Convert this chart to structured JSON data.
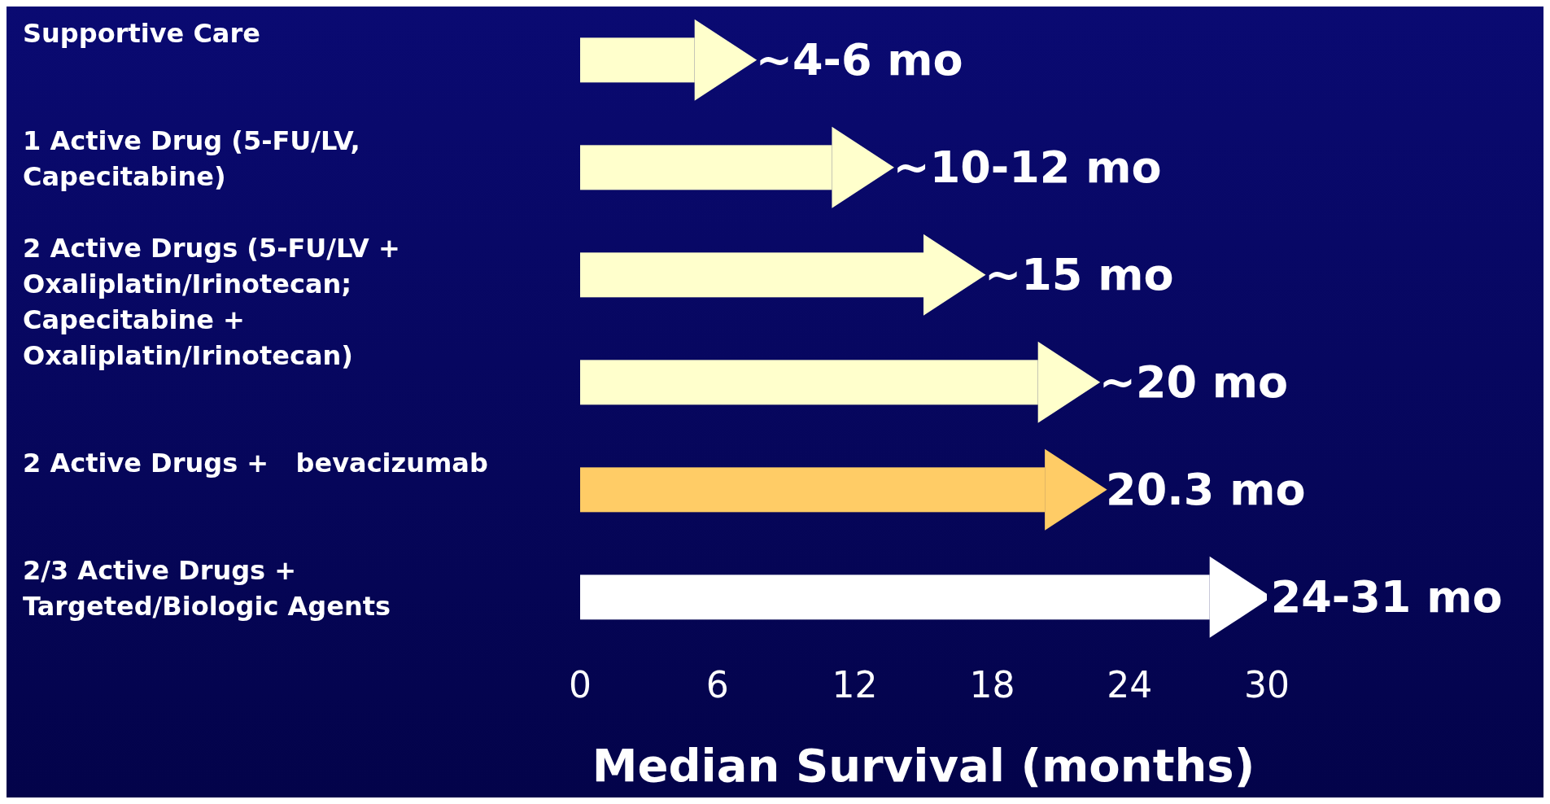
{
  "chart_data": {
    "type": "bar",
    "orientation": "horizontal",
    "categories": [
      "Supportive Care",
      "1 Active Drug (5-FU/LV, Capecitabine)",
      "2 Active Drugs (5-FU/LV + Oxaliplatin/Irinotecan; Capecitabine + Oxaliplatin/Irinotecan)",
      null,
      "2 Active Drugs +   bevacizumab",
      "2/3 Active Drugs + Targeted/Biologic Agents"
    ],
    "values": [
      5,
      11,
      15,
      20,
      20.3,
      27.5
    ],
    "value_labels": [
      "~4-6 mo",
      "~10-12 mo",
      "~15 mo",
      "~20 mo",
      "20.3 mo",
      "24-31 mo"
    ],
    "colors": [
      "#ffffcc",
      "#ffffcc",
      "#ffffcc",
      "#ffffcc",
      "#ffcc66",
      "#ffffff"
    ],
    "xlabel": "Median Survival (months)",
    "xlim": [
      0,
      30
    ],
    "xticks": [
      0,
      6,
      12,
      18,
      24,
      30
    ]
  }
}
